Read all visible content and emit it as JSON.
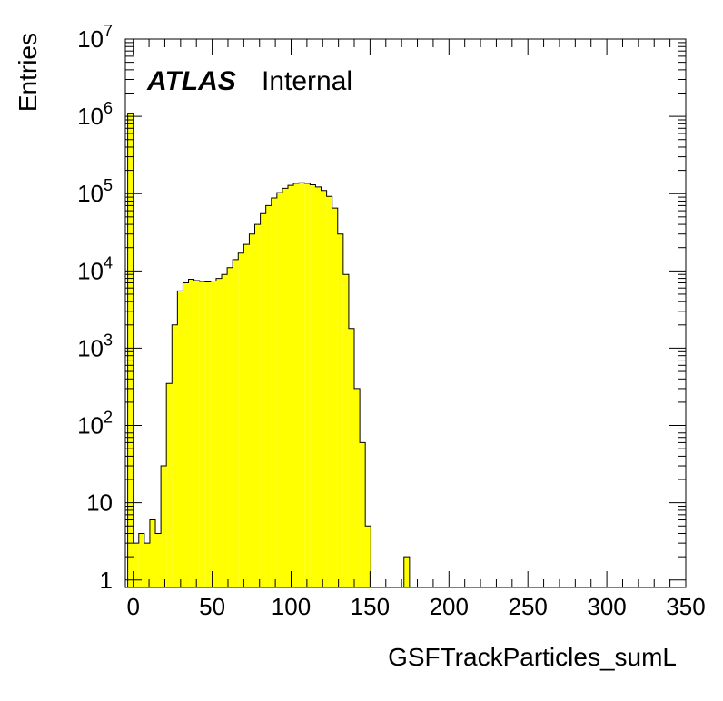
{
  "chart_data": {
    "type": "bar",
    "title": "",
    "xlabel": "GSFTrackParticles_sumL",
    "ylabel": "Entries",
    "label_main": "ATLAS",
    "label_sub": "Internal",
    "yscale": "log",
    "xlim": [
      -5,
      350
    ],
    "ylim": [
      0.8,
      10000000
    ],
    "x_tick_labels": [
      "0",
      "50",
      "100",
      "150",
      "200",
      "250",
      "300",
      "350"
    ],
    "x_ticks": [
      0,
      50,
      100,
      150,
      200,
      250,
      300,
      350
    ],
    "y_ticks": [
      {
        "value": 1,
        "base": "1",
        "exp": ""
      },
      {
        "value": 10,
        "base": "10",
        "exp": ""
      },
      {
        "value": 100,
        "base": "10",
        "exp": "2"
      },
      {
        "value": 1000,
        "base": "10",
        "exp": "3"
      },
      {
        "value": 10000,
        "base": "10",
        "exp": "4"
      },
      {
        "value": 100000,
        "base": "10",
        "exp": "5"
      },
      {
        "value": 1000000,
        "base": "10",
        "exp": "6"
      },
      {
        "value": 10000000,
        "base": "10",
        "exp": "7"
      }
    ],
    "bin_width": 3.5,
    "bin_start": -3.5,
    "fill_color": "#ffff00",
    "line_color": "#000000",
    "counts": [
      1100000,
      3,
      4,
      3,
      6,
      4,
      30,
      350,
      2000,
      5500,
      7000,
      7800,
      7500,
      7300,
      7200,
      7400,
      8000,
      9000,
      11000,
      14000,
      17000,
      22000,
      30000,
      40000,
      55000,
      70000,
      88000,
      103000,
      117000,
      128000,
      136000,
      138000,
      136000,
      130000,
      122000,
      110000,
      92000,
      65000,
      30000,
      9000,
      1800,
      300,
      60,
      5,
      0,
      0,
      0,
      0,
      0,
      0,
      2,
      0
    ]
  }
}
